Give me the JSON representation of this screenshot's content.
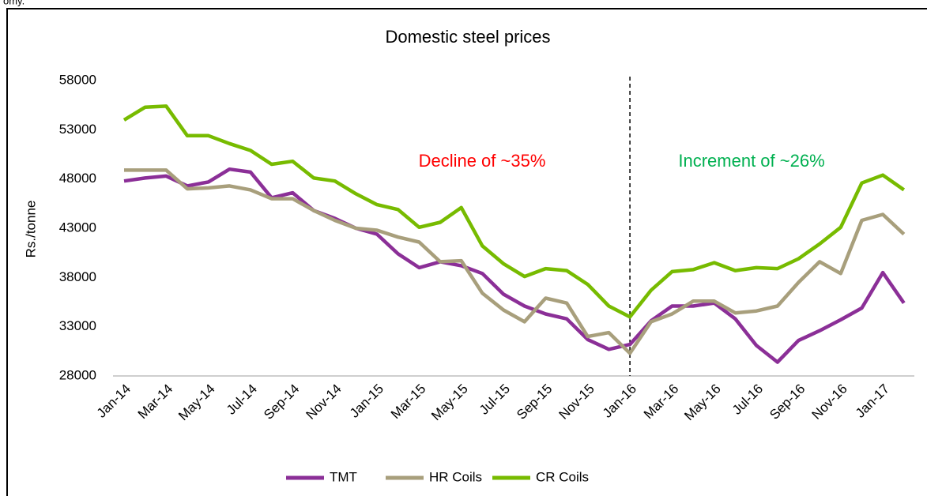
{
  "page_fragment": "omy.",
  "chart_data": {
    "type": "line",
    "title": "Domestic steel prices",
    "y_label": "Rs./tonne",
    "categories": [
      "Jan-14",
      null,
      "Mar-14",
      null,
      "May-14",
      null,
      "Jul-14",
      null,
      "Sep-14",
      null,
      "Nov-14",
      null,
      "Jan-15",
      null,
      "Mar-15",
      null,
      "May-15",
      null,
      "Jul-15",
      null,
      "Sep-15",
      null,
      "Nov-15",
      null,
      "Jan-16",
      null,
      "Mar-16",
      null,
      "May-16",
      null,
      "Jul-16",
      null,
      "Sep-16",
      null,
      "Nov-16",
      null,
      "Jan-17",
      null
    ],
    "series": [
      {
        "name": "TMT",
        "color": "#8b2f97",
        "values": [
          47800,
          48100,
          48300,
          47300,
          47700,
          49000,
          48700,
          46100,
          46600,
          44800,
          44000,
          43000,
          42400,
          40400,
          39000,
          39600,
          39200,
          38400,
          36300,
          35100,
          34300,
          33800,
          31700,
          30700,
          31200,
          33600,
          35100,
          35100,
          35400,
          33800,
          31100,
          29400,
          31600,
          32600,
          33700,
          34900,
          38500,
          35400
        ]
      },
      {
        "name": "HR Coils",
        "color": "#a89f7c",
        "values": [
          48900,
          48900,
          48900,
          47000,
          47100,
          47300,
          46900,
          46000,
          46000,
          44800,
          43800,
          43000,
          42800,
          42100,
          41600,
          39600,
          39700,
          36400,
          34700,
          33500,
          35900,
          35400,
          32000,
          32400,
          30300,
          33500,
          34300,
          35600,
          35600,
          34400,
          34600,
          35100,
          37500,
          39600,
          38400,
          43800,
          44400,
          42400
        ]
      },
      {
        "name": "CR Coils",
        "color": "#77bb00",
        "values": [
          54000,
          55300,
          55400,
          52400,
          52400,
          51600,
          50900,
          49500,
          49800,
          48100,
          47800,
          46500,
          45400,
          44900,
          43100,
          43600,
          45100,
          41200,
          39400,
          38100,
          38900,
          38700,
          37300,
          35100,
          34000,
          36700,
          38600,
          38800,
          39500,
          38700,
          39000,
          38900,
          39900,
          41400,
          43100,
          47600,
          48400,
          46900
        ]
      }
    ],
    "ylim": [
      28000,
      58000
    ],
    "yticks": [
      28000,
      33000,
      38000,
      43000,
      48000,
      53000,
      58000
    ],
    "divider_index": 24,
    "annotations": [
      {
        "text": "Decline of ~35%",
        "color": "#ff0000"
      },
      {
        "text": "Increment of ~26%",
        "color": "#00b050"
      }
    ],
    "legend": "bottom"
  }
}
